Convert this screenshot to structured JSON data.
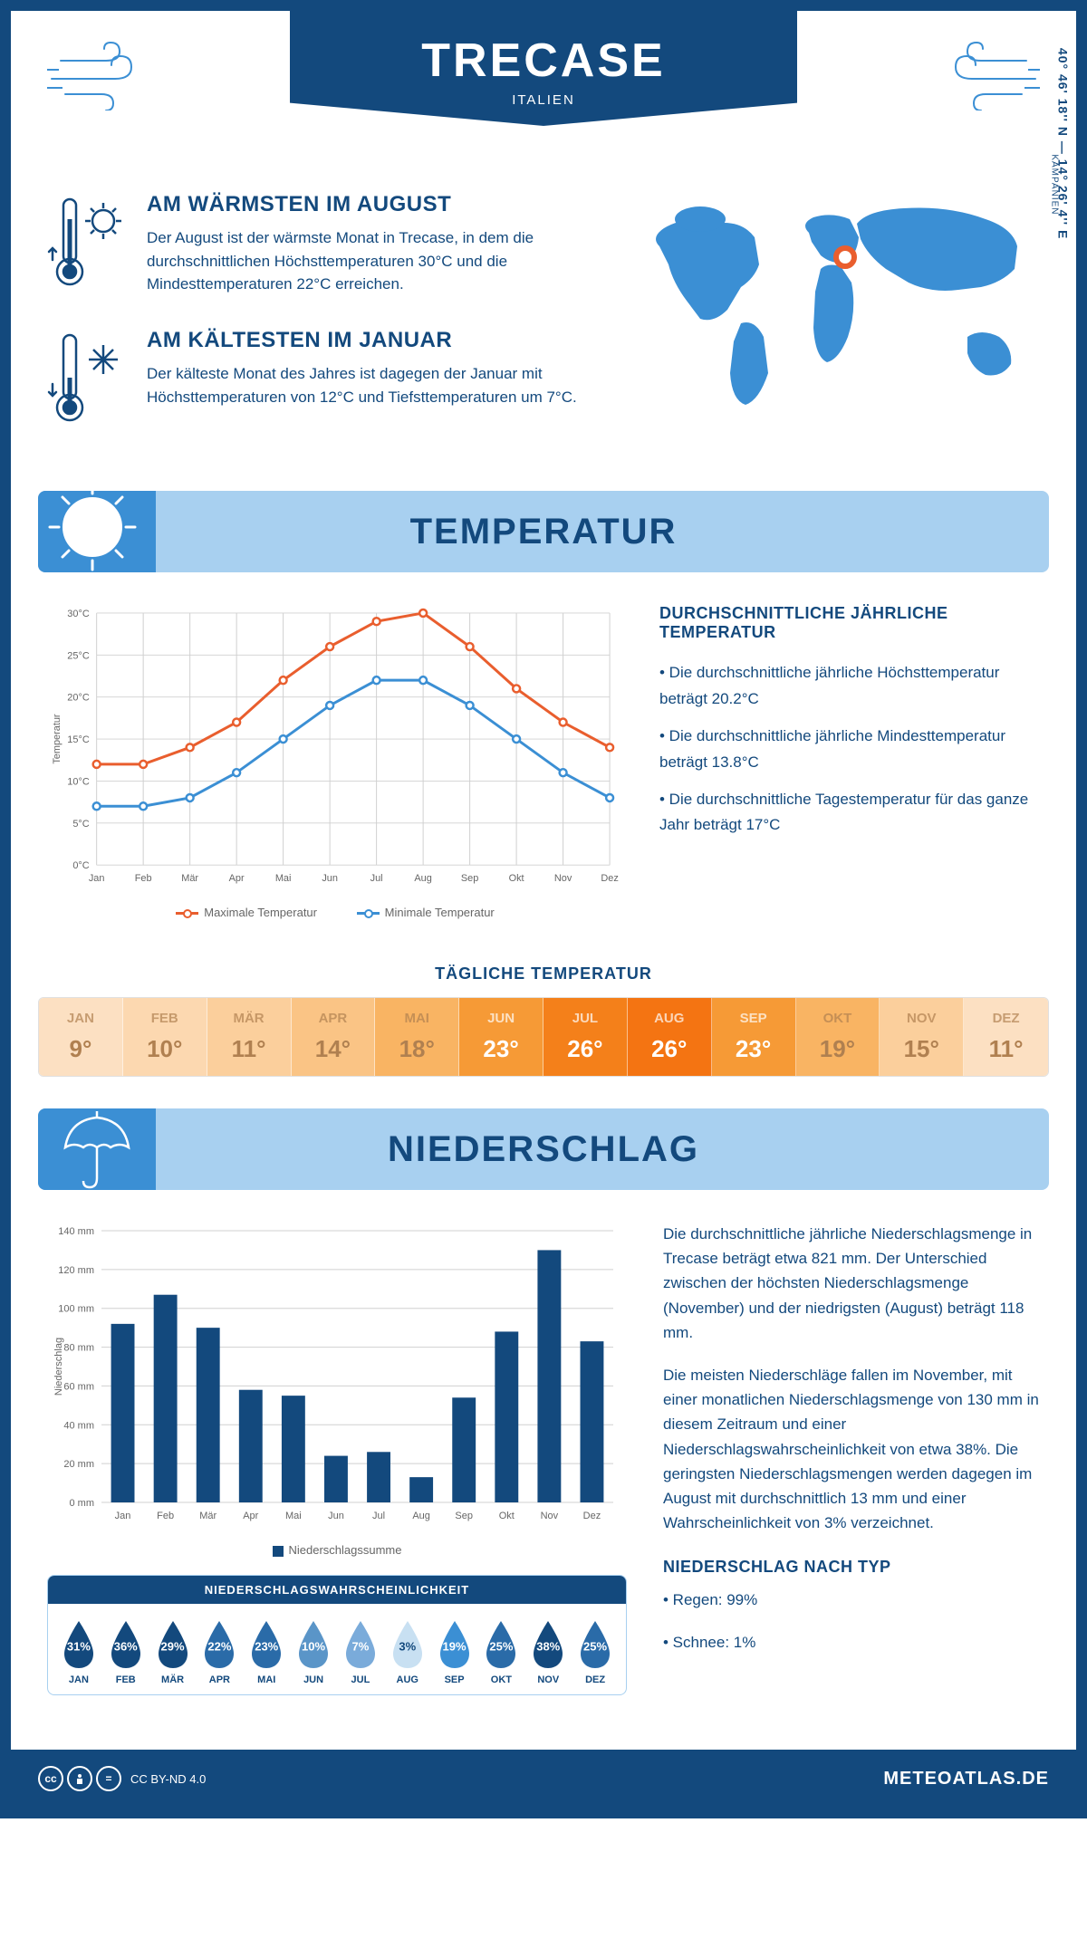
{
  "header": {
    "city": "TRECASE",
    "country": "ITALIEN"
  },
  "coords": "40° 46' 18'' N — 14° 26' 4'' E",
  "region": "KAMPANIEN",
  "facts": {
    "warm": {
      "title": "AM WÄRMSTEN IM AUGUST",
      "text": "Der August ist der wärmste Monat in Trecase, in dem die durchschnittlichen Höchsttemperaturen 30°C und die Mindesttemperaturen 22°C erreichen."
    },
    "cold": {
      "title": "AM KÄLTESTEN IM JANUAR",
      "text": "Der kälteste Monat des Jahres ist dagegen der Januar mit Höchsttemperaturen von 12°C und Tiefsttemperaturen um 7°C."
    }
  },
  "temp_section": {
    "title": "TEMPERATUR",
    "chart": {
      "type": "line",
      "months": [
        "Jan",
        "Feb",
        "Mär",
        "Apr",
        "Mai",
        "Jun",
        "Jul",
        "Aug",
        "Sep",
        "Okt",
        "Nov",
        "Dez"
      ],
      "max_series": {
        "label": "Maximale Temperatur",
        "color": "#e95e2e",
        "values": [
          12,
          12,
          14,
          17,
          22,
          26,
          29,
          30,
          26,
          21,
          17,
          14
        ]
      },
      "min_series": {
        "label": "Minimale Temperatur",
        "color": "#3b8fd4",
        "values": [
          7,
          7,
          8,
          11,
          15,
          19,
          22,
          22,
          19,
          15,
          11,
          8
        ]
      },
      "ylabel": "Temperatur",
      "ylim": [
        0,
        30
      ],
      "ytick_step": 5,
      "ytick_suffix": "°C",
      "grid_color": "#d0d0d0",
      "bg": "#ffffff",
      "line_width": 3,
      "marker": "circle",
      "marker_size": 4
    },
    "stats": {
      "heading": "DURCHSCHNITTLICHE JÄHRLICHE TEMPERATUR",
      "b1": "• Die durchschnittliche jährliche Höchsttemperatur beträgt 20.2°C",
      "b2": "• Die durchschnittliche jährliche Mindesttemperatur beträgt 13.8°C",
      "b3": "• Die durchschnittliche Tagestemperatur für das ganze Jahr beträgt 17°C"
    },
    "daily": {
      "heading": "TÄGLICHE TEMPERATUR",
      "months": [
        "JAN",
        "FEB",
        "MÄR",
        "APR",
        "MAI",
        "JUN",
        "JUL",
        "AUG",
        "SEP",
        "OKT",
        "NOV",
        "DEZ"
      ],
      "values": [
        "9°",
        "10°",
        "11°",
        "14°",
        "18°",
        "23°",
        "26°",
        "26°",
        "23°",
        "19°",
        "15°",
        "11°"
      ],
      "bg_colors": [
        "#fce0c2",
        "#fcd8b0",
        "#fbcf9c",
        "#fac485",
        "#f9b463",
        "#f69a36",
        "#f4801a",
        "#f47412",
        "#f69a36",
        "#f9b463",
        "#fbcf9c",
        "#fce0c2"
      ],
      "text_colors": [
        "#b08050",
        "#b08050",
        "#b08050",
        "#b08050",
        "#b08050",
        "#ffffff",
        "#ffffff",
        "#ffffff",
        "#ffffff",
        "#b08050",
        "#b08050",
        "#b08050"
      ]
    }
  },
  "precip_section": {
    "title": "NIEDERSCHLAG",
    "chart": {
      "type": "bar",
      "months": [
        "Jan",
        "Feb",
        "Mär",
        "Apr",
        "Mai",
        "Jun",
        "Jul",
        "Aug",
        "Sep",
        "Okt",
        "Nov",
        "Dez"
      ],
      "values": [
        92,
        107,
        90,
        58,
        55,
        24,
        26,
        13,
        54,
        88,
        130,
        83
      ],
      "bar_color": "#13497d",
      "ylabel": "Niederschlag",
      "ylim": [
        0,
        140
      ],
      "ytick_step": 20,
      "ytick_suffix": " mm",
      "grid_color": "#d0d0d0",
      "legend_label": "Niederschlagssumme",
      "bar_width": 0.55
    },
    "p1": "Die durchschnittliche jährliche Niederschlagsmenge in Trecase beträgt etwa 821 mm. Der Unterschied zwischen der höchsten Niederschlagsmenge (November) und der niedrigsten (August) beträgt 118 mm.",
    "p2": "Die meisten Niederschläge fallen im November, mit einer monatlichen Niederschlagsmenge von 130 mm in diesem Zeitraum und einer Niederschlagswahrscheinlichkeit von etwa 38%. Die geringsten Niederschlagsmengen werden dagegen im August mit durchschnittlich 13 mm und einer Wahrscheinlichkeit von 3% verzeichnet.",
    "type_head": "NIEDERSCHLAG NACH TYP",
    "t1": "• Regen: 99%",
    "t2": "• Schnee: 1%",
    "prob": {
      "heading": "NIEDERSCHLAGSWAHRSCHEINLICHKEIT",
      "months": [
        "JAN",
        "FEB",
        "MÄR",
        "APR",
        "MAI",
        "JUN",
        "JUL",
        "AUG",
        "SEP",
        "OKT",
        "NOV",
        "DEZ"
      ],
      "pcts": [
        "31%",
        "36%",
        "29%",
        "22%",
        "23%",
        "10%",
        "7%",
        "3%",
        "19%",
        "25%",
        "38%",
        "25%"
      ],
      "fills": [
        "#13497d",
        "#13497d",
        "#13497d",
        "#2a6ba8",
        "#2a6ba8",
        "#5a95c8",
        "#7aabda",
        "#c8e0f2",
        "#3b8fd4",
        "#2a6ba8",
        "#13497d",
        "#2a6ba8"
      ],
      "pct_text_colors": [
        "#fff",
        "#fff",
        "#fff",
        "#fff",
        "#fff",
        "#fff",
        "#fff",
        "#13497d",
        "#fff",
        "#fff",
        "#fff",
        "#fff"
      ]
    }
  },
  "footer": {
    "license": "CC BY-ND 4.0",
    "brand": "METEOATLAS.DE"
  }
}
